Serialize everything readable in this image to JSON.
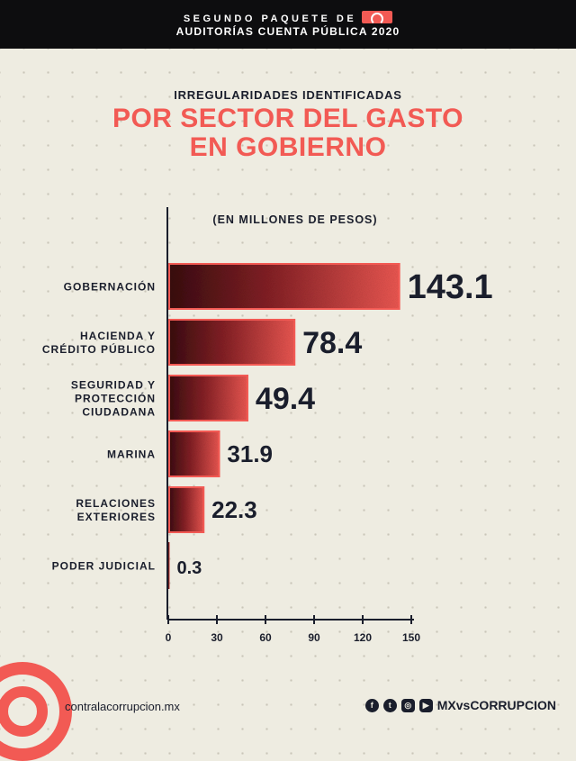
{
  "header": {
    "line1": "SEGUNDO PAQUETE DE",
    "line2": "AUDITORÍAS CUENTA PÚBLICA 2020"
  },
  "subtitle": "IRREGULARIDADES IDENTIFICADAS",
  "title_line1": "POR SECTOR DEL GASTO",
  "title_line2": "EN GOBIERNO",
  "footer": {
    "website": "contralacorrupcion.mx",
    "handle": "MXvsCORRUPCION",
    "icons": [
      "facebook-icon",
      "twitter-icon",
      "instagram-icon",
      "youtube-icon"
    ]
  },
  "chart_data": {
    "type": "bar",
    "orientation": "horizontal",
    "unit_label": "(EN MILLONES DE PESOS)",
    "categories": [
      [
        "GOBERNACIÓN"
      ],
      [
        "HACIENDA Y",
        "CRÉDITO PÚBLICO"
      ],
      [
        "SEGURIDAD Y",
        "PROTECCIÓN",
        "CIUDADANA"
      ],
      [
        "MARINA"
      ],
      [
        "RELACIONES",
        "EXTERIORES"
      ],
      [
        "PODER JUDICIAL"
      ]
    ],
    "values": [
      143.1,
      78.4,
      49.4,
      31.9,
      22.3,
      0.3
    ],
    "value_labels": [
      "143.1",
      "78.4",
      "49.4",
      "31.9",
      "22.3",
      "0.3"
    ],
    "xlim": [
      0,
      150
    ],
    "xticks": [
      0,
      30,
      60,
      90,
      120,
      150
    ],
    "colors": {
      "bar": "#f25a54",
      "bar_dark": "#5a1215",
      "text": "#1a1e2c"
    }
  }
}
